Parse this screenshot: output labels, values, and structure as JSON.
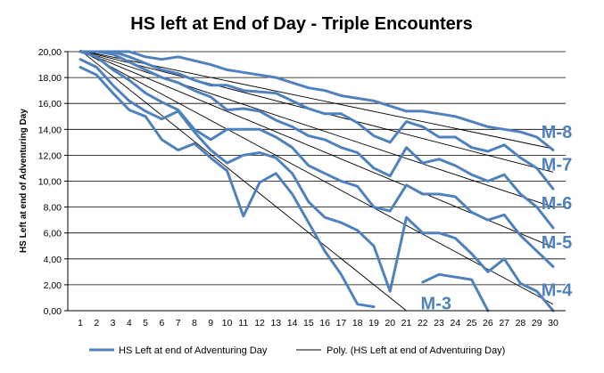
{
  "colors": {
    "series": "#4f81bd",
    "trend": "#000000",
    "grid": "#000000",
    "label": "#4f81bd"
  },
  "chart_data": {
    "type": "line",
    "title": "HS left at End of Day - Triple Encounters",
    "xlabel": "",
    "ylabel": "HS Left at end of Adventuring Day",
    "xlim": [
      1,
      30
    ],
    "ylim": [
      0,
      20
    ],
    "grid": true,
    "legend_position": "bottom",
    "x": [
      1,
      2,
      3,
      4,
      5,
      6,
      7,
      8,
      9,
      10,
      11,
      12,
      13,
      14,
      15,
      16,
      17,
      18,
      19,
      20,
      21,
      22,
      23,
      24,
      25,
      26,
      27,
      28,
      29,
      30
    ],
    "x_tick_labels": [
      "1",
      "2",
      "3",
      "4",
      "5",
      "6",
      "7",
      "8",
      "9",
      "10",
      "11",
      "12",
      "13",
      "14",
      "15",
      "16",
      "17",
      "18",
      "19",
      "20",
      "21",
      "22",
      "23",
      "24",
      "25",
      "26",
      "27",
      "28",
      "29",
      "30"
    ],
    "y_tick_labels": [
      "0,00",
      "2,00",
      "4,00",
      "6,00",
      "8,00",
      "10,00",
      "12,00",
      "14,00",
      "16,00",
      "18,00",
      "20,00"
    ],
    "legend": {
      "series_label": "HS Left at end of Adventuring Day",
      "trend_label": "Poly. (HS Left at end of Adventuring Day)"
    },
    "series": [
      {
        "name": "M-8",
        "values": [
          20,
          20,
          20,
          20,
          19.6,
          19.4,
          19.6,
          19.3,
          19,
          18.6,
          18.4,
          18.2,
          18,
          17.6,
          17.2,
          17,
          16.6,
          16.4,
          16.2,
          15.8,
          15.4,
          15.4,
          15.2,
          15,
          14.6,
          14.2,
          14,
          13.8,
          13.4,
          12.4
        ]
      },
      {
        "name": "M-7",
        "values": [
          20,
          20,
          20,
          19.6,
          19.1,
          18.6,
          18.3,
          17.8,
          17.4,
          17.4,
          17,
          16.9,
          16.8,
          16.2,
          15.6,
          15.2,
          15.2,
          14.5,
          13.5,
          13,
          14.6,
          14.2,
          13.4,
          13.4,
          12.6,
          12.3,
          12.8,
          11.8,
          11,
          9.4
        ]
      },
      {
        "name": "M-6",
        "values": [
          20,
          20,
          19.8,
          19.2,
          18.6,
          18,
          17.6,
          17,
          16.5,
          15.5,
          15.6,
          15.4,
          14.7,
          14.2,
          13.5,
          13.2,
          12.6,
          12.2,
          11,
          10.4,
          12.6,
          11.4,
          11.7,
          11.2,
          10.5,
          10,
          10.5,
          9,
          8,
          6.4
        ]
      },
      {
        "name": "M-5",
        "values": [
          20,
          19.6,
          18.6,
          17.8,
          16.8,
          16.1,
          15.5,
          14,
          13.2,
          14,
          14,
          14,
          13.4,
          12.6,
          11.2,
          10.6,
          10,
          9.6,
          8,
          7.7,
          9.7,
          9,
          9,
          8.8,
          7.6,
          7,
          7.4,
          5.8,
          4.6,
          3.4
        ]
      },
      {
        "name": "M-4",
        "values": [
          19.4,
          18.8,
          17.4,
          16.2,
          15.4,
          14.8,
          15.4,
          13.8,
          12.4,
          11.4,
          12,
          12.2,
          11.8,
          10.6,
          8.4,
          7.2,
          6.8,
          6.2,
          5,
          1.5,
          7.2,
          6,
          6,
          5.6,
          4.4,
          3,
          4,
          2.1,
          1.5,
          0
        ]
      },
      {
        "name": "M-3",
        "values": [
          18.8,
          18.2,
          16.8,
          15.5,
          15,
          13.2,
          12.4,
          12.9,
          11.8,
          10.8,
          7.3,
          9.9,
          10.6,
          9,
          6.8,
          4.6,
          2.8,
          0.5,
          0.3,
          null,
          null,
          2.2,
          2.8,
          2.6,
          2.4,
          0,
          null,
          null,
          null,
          null
        ]
      }
    ],
    "trendlines": [
      {
        "name": "M-8",
        "start": [
          1,
          20.1
        ],
        "end": [
          30,
          12.5
        ]
      },
      {
        "name": "M-7",
        "start": [
          1,
          20.1
        ],
        "end": [
          30,
          10.7
        ]
      },
      {
        "name": "M-6",
        "start": [
          1,
          20.1
        ],
        "end": [
          30,
          8.0
        ]
      },
      {
        "name": "M-5",
        "start": [
          1,
          20.1
        ],
        "end": [
          30,
          4.9
        ]
      },
      {
        "name": "M-4",
        "start": [
          1,
          20.1
        ],
        "end": [
          30,
          0.5
        ]
      },
      {
        "name": "M-3",
        "start": [
          1,
          20.1
        ],
        "end": [
          21,
          0
        ]
      }
    ],
    "series_tags": [
      {
        "text": "M-8",
        "x": 30.0,
        "y": 13.8
      },
      {
        "text": "M-7",
        "x": 30.0,
        "y": 11.3
      },
      {
        "text": "M-6",
        "x": 30.0,
        "y": 8.3
      },
      {
        "text": "M-5",
        "x": 30.0,
        "y": 5.3
      },
      {
        "text": "M-4",
        "x": 30.0,
        "y": 1.6
      },
      {
        "text": "M-3",
        "x": 22.6,
        "y": 0.6
      }
    ]
  }
}
